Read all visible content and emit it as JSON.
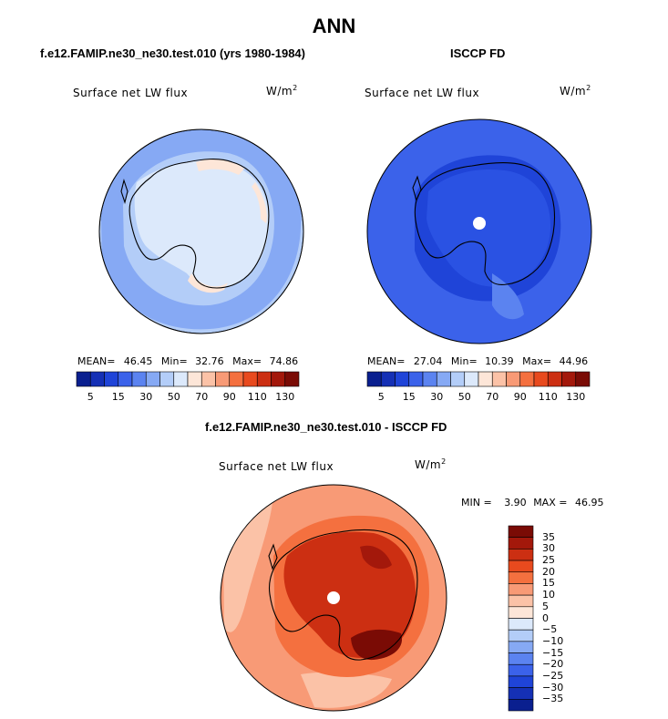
{
  "page": {
    "title": "ANN",
    "left_subtitle": "f.e12.FAMIP.ne30_ne30.test.010 (yrs 1980-1984)",
    "right_subtitle": "ISCCP FD",
    "diff_subtitle": "f.e12.FAMIP.ne30_ne30.test.010 - ISCCP FD"
  },
  "panels": {
    "model": {
      "field_label": "Surface net LW flux",
      "units_main": "W/m",
      "units_exp": "2",
      "mean_label": "MEAN=",
      "mean_value": "46.45",
      "min_label": "Min=",
      "min_value": "32.76",
      "max_label": "Max=",
      "max_value": "74.86"
    },
    "obs": {
      "field_label": "Surface net LW flux",
      "units_main": "W/m",
      "units_exp": "2",
      "mean_label": "MEAN=",
      "mean_value": "27.04",
      "min_label": "Min=",
      "min_value": "10.39",
      "max_label": "Max=",
      "max_value": "44.96"
    },
    "diff": {
      "field_label": "Surface net LW flux",
      "units_main": "W/m",
      "units_exp": "2",
      "min_label": "MIN =",
      "min_value": "3.90",
      "max_label": "MAX =",
      "max_value": "46.95"
    }
  },
  "colorbar_main": {
    "tick_labels": [
      "5",
      "15",
      "30",
      "50",
      "70",
      "90",
      "110",
      "130"
    ],
    "colors": [
      "#0a1f8f",
      "#1530b5",
      "#1f44d8",
      "#3b62ea",
      "#5b83f0",
      "#86a9f4",
      "#b3cdf8",
      "#dce9fb",
      "#fde6d8",
      "#fbc2a7",
      "#f89a76",
      "#f4703f",
      "#e84a1e",
      "#cc2f12",
      "#a3180b",
      "#7a0b05"
    ]
  },
  "colorbar_diff": {
    "tick_labels": [
      "35",
      "30",
      "25",
      "20",
      "15",
      "10",
      "5",
      "0",
      "−5",
      "−10",
      "−15",
      "−20",
      "−25",
      "−30",
      "−35"
    ],
    "colors": [
      "#7a0b05",
      "#a3180b",
      "#cc2f12",
      "#e84a1e",
      "#f4703f",
      "#f89a76",
      "#fbc2a7",
      "#fde6d8",
      "#dce9fb",
      "#b3cdf8",
      "#86a9f4",
      "#5b83f0",
      "#3b62ea",
      "#1f44d8",
      "#1530b5",
      "#0a1f8f"
    ]
  },
  "map_colors": {
    "model_ocean": "#b3cdf8",
    "model_mid": "#86a9f4",
    "model_land": "#dce9fb",
    "model_warm": "#fde6d8",
    "obs_ocean": "#3b62ea",
    "obs_mid": "#1f44d8",
    "obs_land": "#5b83f0",
    "diff_ocean": "#f89a76",
    "diff_mid": "#f4703f",
    "diff_land": "#cc2f12",
    "diff_dark": "#7a0b05",
    "diff_light": "#fbc2a7"
  }
}
